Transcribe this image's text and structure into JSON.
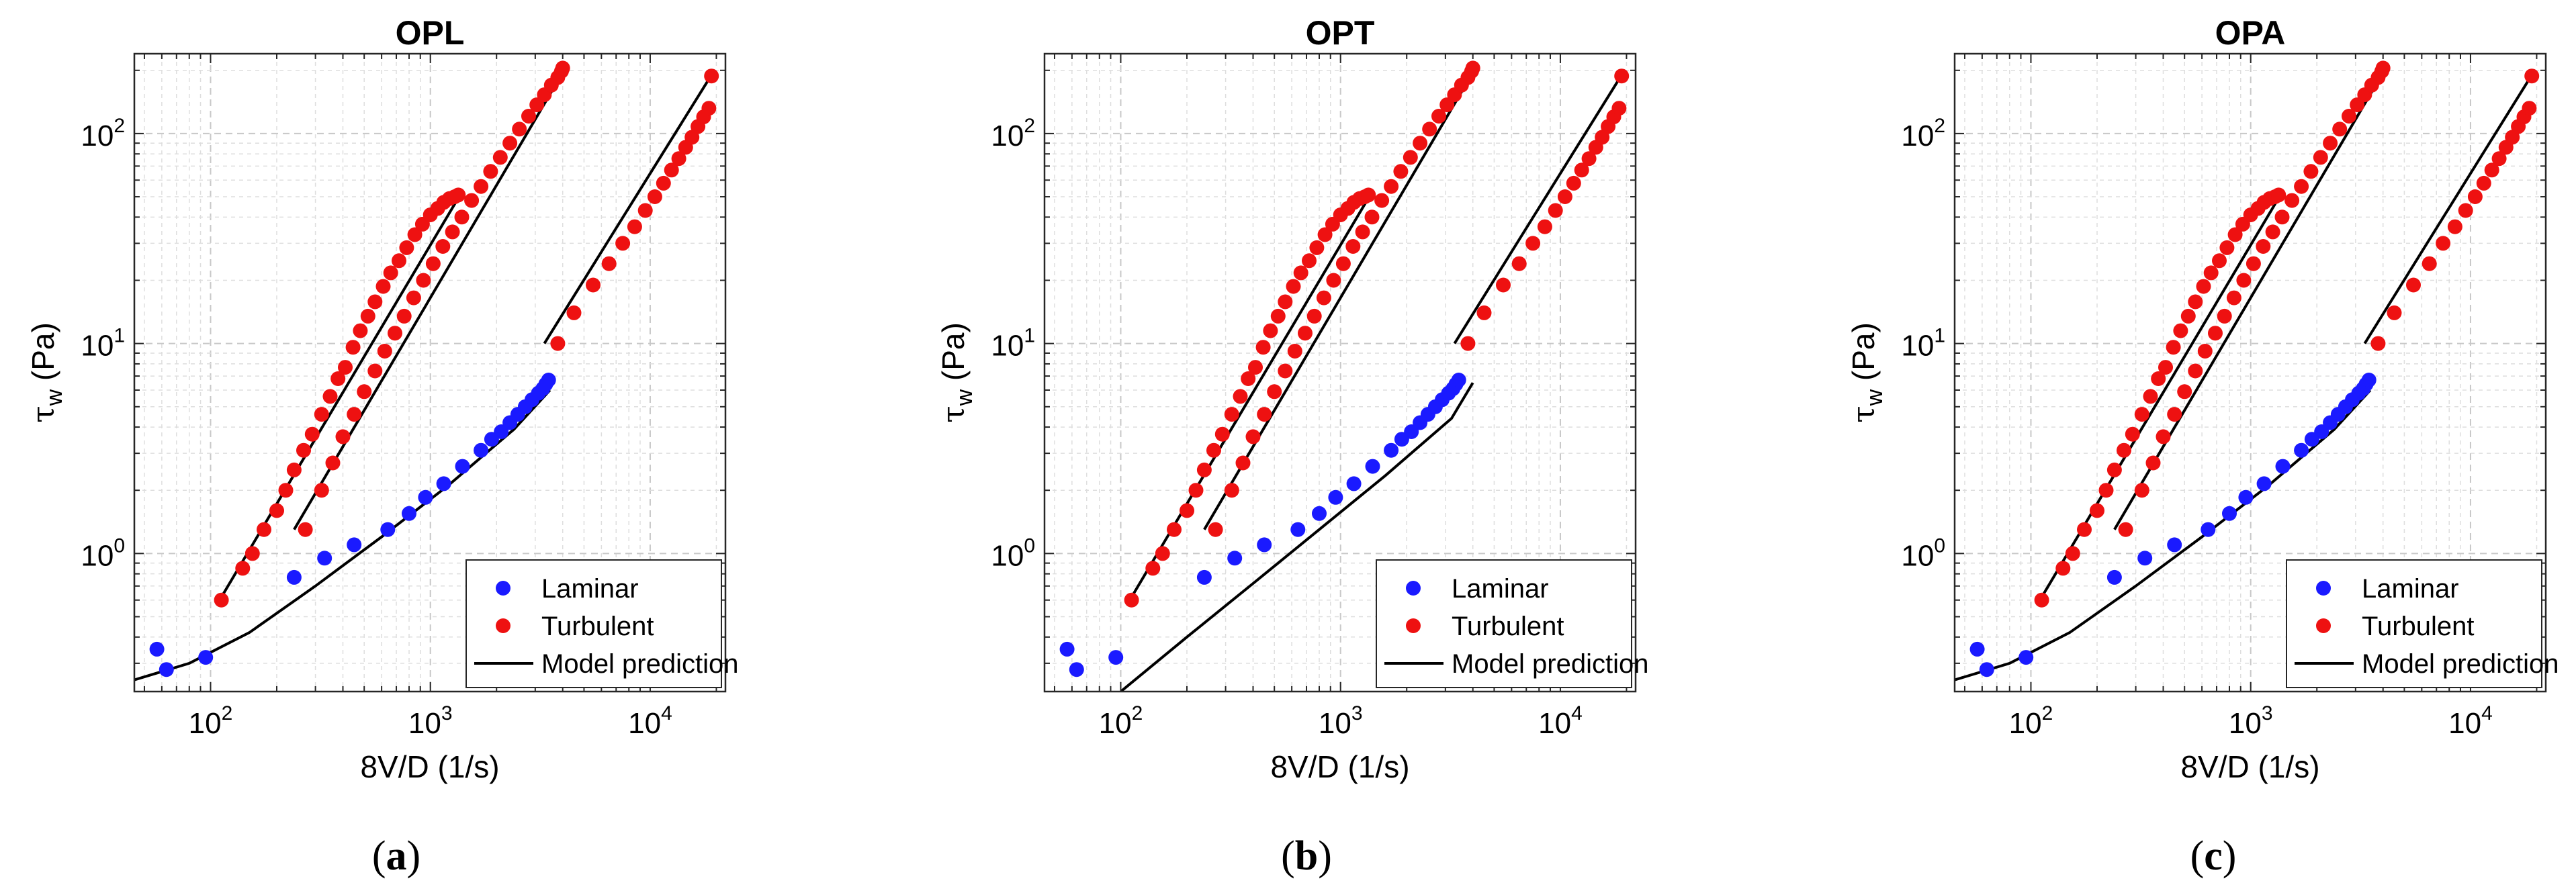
{
  "chart_data": [
    {
      "type": "scatter",
      "panel_id": "a",
      "title": "OPL",
      "caption": {
        "open": "(",
        "letter": "a",
        "close": ")"
      },
      "xlabel": "8V/D (1/s)",
      "ylabel_symbol": "τ",
      "ylabel_sub": "w",
      "ylabel_unit": "(Pa)",
      "xscale": "log",
      "yscale": "log",
      "xlim": [
        45,
        22000
      ],
      "ylim": [
        0.22,
        240
      ],
      "x_ticks": [
        {
          "base": "10",
          "exp": "2",
          "value": 100
        },
        {
          "base": "10",
          "exp": "3",
          "value": 1000
        },
        {
          "base": "10",
          "exp": "4",
          "value": 10000
        }
      ],
      "y_ticks": [
        {
          "base": "10",
          "exp": "0",
          "value": 1
        },
        {
          "base": "10",
          "exp": "1",
          "value": 10
        },
        {
          "base": "10",
          "exp": "2",
          "value": 100
        }
      ],
      "grid": true,
      "legend": {
        "position": "bottom-right",
        "entries": [
          "Laminar",
          "Turbulent",
          "Model prediction"
        ]
      },
      "colors": {
        "laminar": "#1a1aff",
        "turbulent": "#ee1111",
        "model": "#000000"
      },
      "series": [
        {
          "name": "Laminar",
          "kind": "points",
          "color": "#1a1aff",
          "x": [
            57,
            63,
            95,
            240,
            330,
            450,
            640,
            800,
            950,
            1150,
            1400,
            1700,
            1900,
            2100,
            2300,
            2500,
            2700,
            2900,
            3100,
            3250,
            3350,
            3450
          ],
          "y": [
            0.35,
            0.28,
            0.32,
            0.77,
            0.95,
            1.1,
            1.3,
            1.55,
            1.85,
            2.15,
            2.6,
            3.1,
            3.5,
            3.8,
            4.2,
            4.6,
            5.0,
            5.4,
            5.8,
            6.1,
            6.4,
            6.7
          ]
        },
        {
          "name": "Turbulent",
          "kind": "points",
          "color": "#ee1111",
          "x": [
            112,
            140,
            155,
            175,
            200,
            220,
            240,
            265,
            290,
            320,
            350,
            380,
            410,
            445,
            480,
            520,
            560,
            610,
            660,
            720,
            780,
            850,
            920,
            1000,
            1080,
            1150,
            1220,
            1290,
            1340,
            270,
            320,
            360,
            400,
            450,
            500,
            560,
            620,
            690,
            760,
            840,
            930,
            1030,
            1140,
            1260,
            1390,
            1540,
            1700,
            1880,
            2080,
            2300,
            2540,
            2800,
            3050,
            3300,
            3550,
            3800,
            3950,
            4000,
            3800,
            4500,
            5500,
            6500,
            7500,
            8500,
            9500,
            10500,
            11500,
            12500,
            13500,
            14500,
            15500,
            16500,
            17500,
            18500,
            19000
          ],
          "y": [
            0.6,
            0.85,
            1.0,
            1.3,
            1.6,
            2.0,
            2.5,
            3.1,
            3.7,
            4.6,
            5.6,
            6.8,
            7.7,
            9.6,
            11.5,
            13.5,
            15.8,
            18.7,
            21.7,
            24.8,
            28.6,
            33.0,
            37.0,
            41.0,
            44.0,
            47.0,
            49.0,
            50.0,
            51.0,
            1.3,
            2.0,
            2.7,
            3.6,
            4.6,
            5.9,
            7.4,
            9.2,
            11.2,
            13.5,
            16.5,
            20.0,
            24.0,
            29.0,
            34.0,
            40.0,
            48.0,
            56.0,
            66.0,
            77.0,
            90.0,
            105.0,
            121.0,
            137.0,
            153.0,
            170.0,
            185.0,
            198.0,
            205.0,
            10.0,
            14.0,
            19.0,
            24.0,
            30.0,
            36.0,
            43.0,
            50.0,
            58.0,
            67.0,
            76.0,
            86.0,
            96.0,
            108.0,
            120.0,
            132.0,
            188.0
          ]
        },
        {
          "name": "Model prediction",
          "kind": "line",
          "color": "#000000",
          "segments": [
            {
              "x": [
                45,
                80,
                150,
                300,
                600,
                1200,
                2400,
                3500
              ],
              "y": [
                0.25,
                0.3,
                0.42,
                0.7,
                1.2,
                2.1,
                3.9,
                6.0
              ]
            },
            {
              "x": [
                110,
                1350
              ],
              "y": [
                0.6,
                50
              ]
            },
            {
              "x": [
                240,
                4000
              ],
              "y": [
                1.3,
                195
              ]
            },
            {
              "x": [
                3300,
                19000
              ],
              "y": [
                10,
                190
              ]
            }
          ]
        }
      ]
    },
    {
      "type": "scatter",
      "panel_id": "b",
      "title": "OPT",
      "caption": {
        "open": "(",
        "letter": "b",
        "close": ")"
      },
      "xlabel": "8V/D (1/s)",
      "ylabel_symbol": "τ",
      "ylabel_sub": "w",
      "ylabel_unit": "(Pa)",
      "xscale": "log",
      "yscale": "log",
      "xlim": [
        45,
        22000
      ],
      "ylim": [
        0.22,
        240
      ],
      "x_ticks": [
        {
          "base": "10",
          "exp": "2",
          "value": 100
        },
        {
          "base": "10",
          "exp": "3",
          "value": 1000
        },
        {
          "base": "10",
          "exp": "4",
          "value": 10000
        }
      ],
      "y_ticks": [
        {
          "base": "10",
          "exp": "0",
          "value": 1
        },
        {
          "base": "10",
          "exp": "1",
          "value": 10
        },
        {
          "base": "10",
          "exp": "2",
          "value": 100
        }
      ],
      "grid": true,
      "legend": {
        "position": "bottom-right",
        "entries": [
          "Laminar",
          "Turbulent",
          "Model prediction"
        ]
      },
      "colors": {
        "laminar": "#1a1aff",
        "turbulent": "#ee1111",
        "model": "#000000"
      },
      "series": [
        {
          "name": "Laminar",
          "kind": "points",
          "color": "#1a1aff",
          "x": [
            57,
            63,
            95,
            240,
            330,
            450,
            640,
            800,
            950,
            1150,
            1400,
            1700,
            1900,
            2100,
            2300,
            2500,
            2700,
            2900,
            3100,
            3250,
            3350,
            3450
          ],
          "y": [
            0.35,
            0.28,
            0.32,
            0.77,
            0.95,
            1.1,
            1.3,
            1.55,
            1.85,
            2.15,
            2.6,
            3.1,
            3.5,
            3.8,
            4.2,
            4.6,
            5.0,
            5.4,
            5.8,
            6.1,
            6.4,
            6.7
          ]
        },
        {
          "name": "Turbulent",
          "kind": "points",
          "color": "#ee1111",
          "x": [
            112,
            140,
            155,
            175,
            200,
            220,
            240,
            265,
            290,
            320,
            350,
            380,
            410,
            445,
            480,
            520,
            560,
            610,
            660,
            720,
            780,
            850,
            920,
            1000,
            1080,
            1150,
            1220,
            1290,
            1340,
            270,
            320,
            360,
            400,
            450,
            500,
            560,
            620,
            690,
            760,
            840,
            930,
            1030,
            1140,
            1260,
            1390,
            1540,
            1700,
            1880,
            2080,
            2300,
            2540,
            2800,
            3050,
            3300,
            3550,
            3800,
            3950,
            4000,
            3800,
            4500,
            5500,
            6500,
            7500,
            8500,
            9500,
            10500,
            11500,
            12500,
            13500,
            14500,
            15500,
            16500,
            17500,
            18500,
            19000
          ],
          "y": [
            0.6,
            0.85,
            1.0,
            1.3,
            1.6,
            2.0,
            2.5,
            3.1,
            3.7,
            4.6,
            5.6,
            6.8,
            7.7,
            9.6,
            11.5,
            13.5,
            15.8,
            18.7,
            21.7,
            24.8,
            28.6,
            33.0,
            37.0,
            41.0,
            44.0,
            47.0,
            49.0,
            50.0,
            51.0,
            1.3,
            2.0,
            2.7,
            3.6,
            4.6,
            5.9,
            7.4,
            9.2,
            11.2,
            13.5,
            16.5,
            20.0,
            24.0,
            29.0,
            34.0,
            40.0,
            48.0,
            56.0,
            66.0,
            77.0,
            90.0,
            105.0,
            121.0,
            137.0,
            153.0,
            170.0,
            185.0,
            198.0,
            205.0,
            10.0,
            14.0,
            19.0,
            24.0,
            30.0,
            36.0,
            43.0,
            50.0,
            58.0,
            67.0,
            76.0,
            86.0,
            96.0,
            108.0,
            120.0,
            132.0,
            188.0
          ]
        },
        {
          "name": "Model prediction",
          "kind": "line",
          "color": "#000000",
          "segments": [
            {
              "x": [
                100,
                200,
                400,
                800,
                1600,
                3200,
                4000
              ],
              "y": [
                0.22,
                0.4,
                0.72,
                1.3,
                2.35,
                4.4,
                6.5
              ]
            },
            {
              "x": [
                110,
                1350
              ],
              "y": [
                0.6,
                50
              ]
            },
            {
              "x": [
                240,
                4000
              ],
              "y": [
                1.3,
                195
              ]
            },
            {
              "x": [
                3300,
                19000
              ],
              "y": [
                10,
                190
              ]
            }
          ]
        }
      ]
    },
    {
      "type": "scatter",
      "panel_id": "c",
      "title": "OPA",
      "caption": {
        "open": "(",
        "letter": "c",
        "close": ")"
      },
      "xlabel": "8V/D (1/s)",
      "ylabel_symbol": "τ",
      "ylabel_sub": "w",
      "ylabel_unit": "(Pa)",
      "xscale": "log",
      "yscale": "log",
      "xlim": [
        45,
        22000
      ],
      "ylim": [
        0.22,
        240
      ],
      "x_ticks": [
        {
          "base": "10",
          "exp": "2",
          "value": 100
        },
        {
          "base": "10",
          "exp": "3",
          "value": 1000
        },
        {
          "base": "10",
          "exp": "4",
          "value": 10000
        }
      ],
      "y_ticks": [
        {
          "base": "10",
          "exp": "0",
          "value": 1
        },
        {
          "base": "10",
          "exp": "1",
          "value": 10
        },
        {
          "base": "10",
          "exp": "2",
          "value": 100
        }
      ],
      "grid": true,
      "legend": {
        "position": "bottom-right",
        "entries": [
          "Laminar",
          "Turbulent",
          "Model prediction"
        ]
      },
      "colors": {
        "laminar": "#1a1aff",
        "turbulent": "#ee1111",
        "model": "#000000"
      },
      "series": [
        {
          "name": "Laminar",
          "kind": "points",
          "color": "#1a1aff",
          "x": [
            57,
            63,
            95,
            240,
            330,
            450,
            640,
            800,
            950,
            1150,
            1400,
            1700,
            1900,
            2100,
            2300,
            2500,
            2700,
            2900,
            3100,
            3250,
            3350,
            3450
          ],
          "y": [
            0.35,
            0.28,
            0.32,
            0.77,
            0.95,
            1.1,
            1.3,
            1.55,
            1.85,
            2.15,
            2.6,
            3.1,
            3.5,
            3.8,
            4.2,
            4.6,
            5.0,
            5.4,
            5.8,
            6.1,
            6.4,
            6.7
          ]
        },
        {
          "name": "Turbulent",
          "kind": "points",
          "color": "#ee1111",
          "x": [
            112,
            140,
            155,
            175,
            200,
            220,
            240,
            265,
            290,
            320,
            350,
            380,
            410,
            445,
            480,
            520,
            560,
            610,
            660,
            720,
            780,
            850,
            920,
            1000,
            1080,
            1150,
            1220,
            1290,
            1340,
            270,
            320,
            360,
            400,
            450,
            500,
            560,
            620,
            690,
            760,
            840,
            930,
            1030,
            1140,
            1260,
            1390,
            1540,
            1700,
            1880,
            2080,
            2300,
            2540,
            2800,
            3050,
            3300,
            3550,
            3800,
            3950,
            4000,
            3800,
            4500,
            5500,
            6500,
            7500,
            8500,
            9500,
            10500,
            11500,
            12500,
            13500,
            14500,
            15500,
            16500,
            17500,
            18500,
            19000
          ],
          "y": [
            0.6,
            0.85,
            1.0,
            1.3,
            1.6,
            2.0,
            2.5,
            3.1,
            3.7,
            4.6,
            5.6,
            6.8,
            7.7,
            9.6,
            11.5,
            13.5,
            15.8,
            18.7,
            21.7,
            24.8,
            28.6,
            33.0,
            37.0,
            41.0,
            44.0,
            47.0,
            49.0,
            50.0,
            51.0,
            1.3,
            2.0,
            2.7,
            3.6,
            4.6,
            5.9,
            7.4,
            9.2,
            11.2,
            13.5,
            16.5,
            20.0,
            24.0,
            29.0,
            34.0,
            40.0,
            48.0,
            56.0,
            66.0,
            77.0,
            90.0,
            105.0,
            121.0,
            137.0,
            153.0,
            170.0,
            185.0,
            198.0,
            205.0,
            10.0,
            14.0,
            19.0,
            24.0,
            30.0,
            36.0,
            43.0,
            50.0,
            58.0,
            67.0,
            76.0,
            86.0,
            96.0,
            108.0,
            120.0,
            132.0,
            188.0
          ]
        },
        {
          "name": "Model prediction",
          "kind": "line",
          "color": "#000000",
          "segments": [
            {
              "x": [
                45,
                80,
                150,
                300,
                600,
                1200,
                2400,
                3500
              ],
              "y": [
                0.25,
                0.3,
                0.42,
                0.7,
                1.2,
                2.1,
                3.9,
                6.0
              ]
            },
            {
              "x": [
                110,
                1350
              ],
              "y": [
                0.6,
                50
              ]
            },
            {
              "x": [
                240,
                4000
              ],
              "y": [
                1.3,
                195
              ]
            },
            {
              "x": [
                3300,
                19000
              ],
              "y": [
                10,
                190
              ]
            }
          ]
        }
      ]
    }
  ]
}
